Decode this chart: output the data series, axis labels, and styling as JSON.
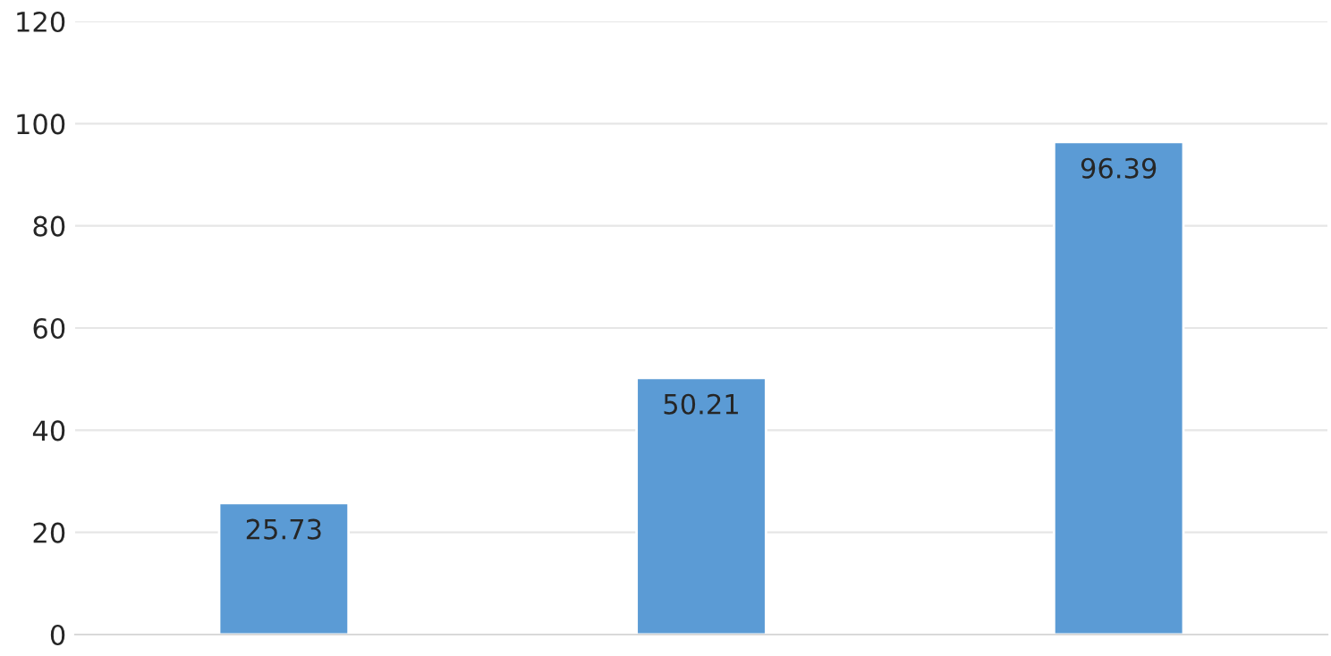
{
  "chart_data": {
    "type": "bar",
    "categories": [
      null,
      null,
      null
    ],
    "values": [
      25.73,
      50.21,
      96.39
    ],
    "color": "#5b9bd5",
    "ylim": [
      0,
      120
    ],
    "yticks": [
      0,
      20,
      40,
      60,
      80,
      100,
      120
    ],
    "grid": "y",
    "data_labels": true
  }
}
